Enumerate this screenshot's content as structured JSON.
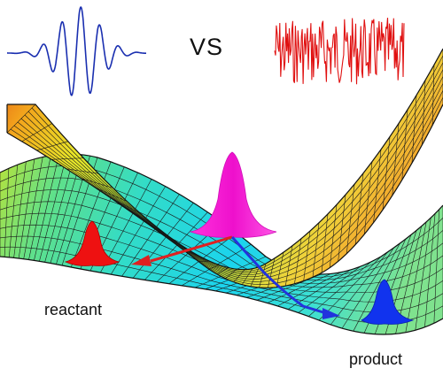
{
  "labels": {
    "vs": "VS",
    "reactant": "reactant",
    "product": "product"
  },
  "colors": {
    "coherent_pulse": "#1a2fb0",
    "noise_signal": "#e01010",
    "excited_wavepacket": "#ff22cc",
    "reactant_wavepacket": "#ee1111",
    "product_wavepacket": "#1133ee",
    "reactant_path_arrow": "#e02020",
    "product_path_arrow": "#2233dd",
    "mesh_lines": "#1a1a1a"
  },
  "elements": {
    "coherent_pulse": "coherent-pulse-waveform",
    "noise_signal": "incoherent-noise-waveform",
    "upper_surface": "excited-state-potential-surface",
    "lower_surface": "ground-state-potential-surface",
    "excited_wavepacket": "excited-state-wavepacket",
    "reactant_wavepacket": "reactant-wavepacket",
    "product_wavepacket": "product-wavepacket"
  }
}
